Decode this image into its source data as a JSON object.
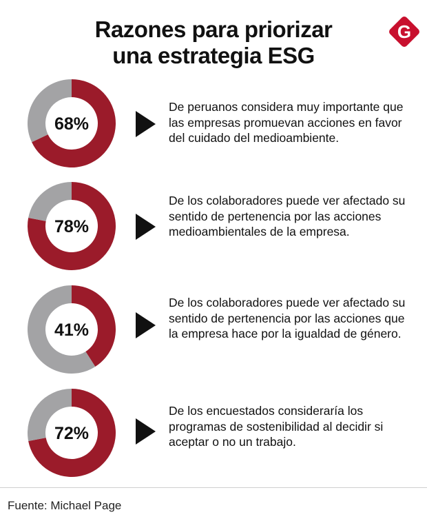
{
  "title_line1": "Razones para priorizar",
  "title_line2": "una estrategia ESG",
  "logo": {
    "letter": "G",
    "icon": "brand-logo-icon",
    "color": "#c8102e"
  },
  "colors": {
    "accent": "#9b1b2a",
    "remainder": "#a3a3a5",
    "text": "#111111"
  },
  "chart_data": {
    "type": "pie",
    "variant": "donut",
    "title": "Razones para priorizar una estrategia ESG",
    "items": [
      {
        "label": "68%",
        "value": 68,
        "text": "De peruanos considera muy importante que las empresas promuevan acciones en favor del cuidado del medioambiente."
      },
      {
        "label": "78%",
        "value": 78,
        "text": "De los colaboradores puede ver afectado su sentido de pertenencia por las acciones medioambientales de la empresa."
      },
      {
        "label": "41%",
        "value": 41,
        "text": "De los colaboradores puede ver afectado su sentido de pertenencia por las acciones que la empresa hace por la igualdad de género."
      },
      {
        "label": "72%",
        "value": 72,
        "text": "De los encuestados consideraría los programas de sostenibilidad al decidir si aceptar o no un trabajo."
      }
    ]
  },
  "source": "Fuente: Michael Page"
}
